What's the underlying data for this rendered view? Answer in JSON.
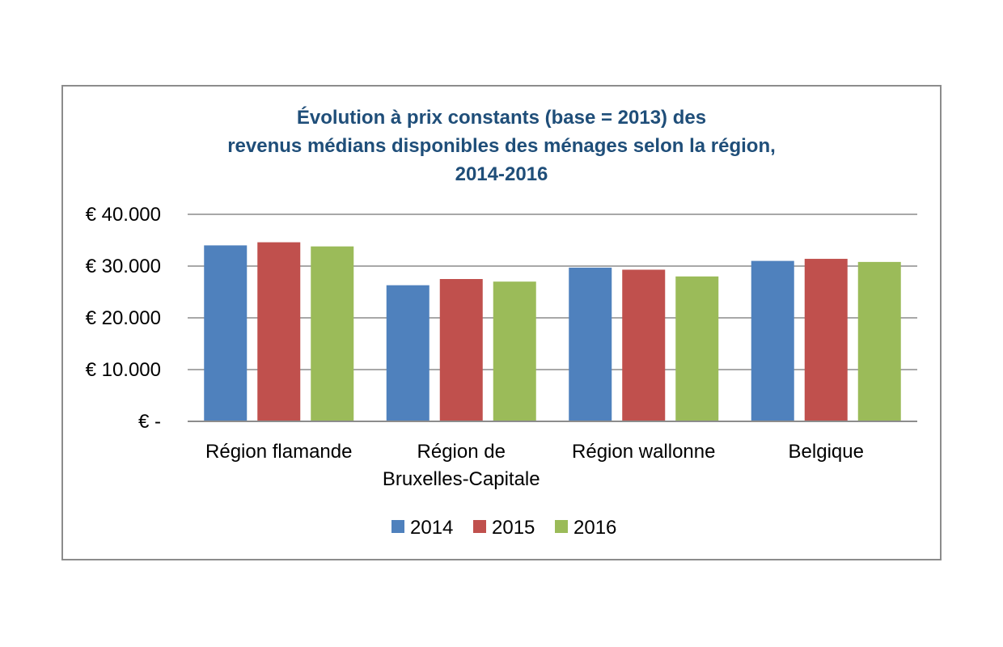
{
  "chart_data": {
    "type": "bar",
    "title": [
      "Évolution à prix constants (base = 2013) des",
      "revenus médians disponibles des ménages selon la région,",
      "2014-2016"
    ],
    "xlabel": "",
    "ylabel": "",
    "categories": [
      [
        "Région flamande"
      ],
      [
        "Région de",
        "Bruxelles-Capitale"
      ],
      [
        "Région wallonne"
      ],
      [
        "Belgique"
      ]
    ],
    "series": [
      {
        "name": "2014",
        "color": "#4f81bd",
        "values": [
          34000,
          26300,
          29700,
          31000
        ]
      },
      {
        "name": "2015",
        "color": "#c0504d",
        "values": [
          34600,
          27500,
          29300,
          31400
        ]
      },
      {
        "name": "2016",
        "color": "#9bbb59",
        "values": [
          33800,
          27000,
          28000,
          30800
        ]
      }
    ],
    "ylim": [
      0,
      40000
    ],
    "yticks": [
      0,
      10000,
      20000,
      30000,
      40000
    ],
    "ytick_labels": [
      "€ -",
      "€ 10.000",
      "€ 20.000",
      "€ 30.000",
      "€ 40.000"
    ],
    "grid": true,
    "legend_position": "bottom"
  }
}
